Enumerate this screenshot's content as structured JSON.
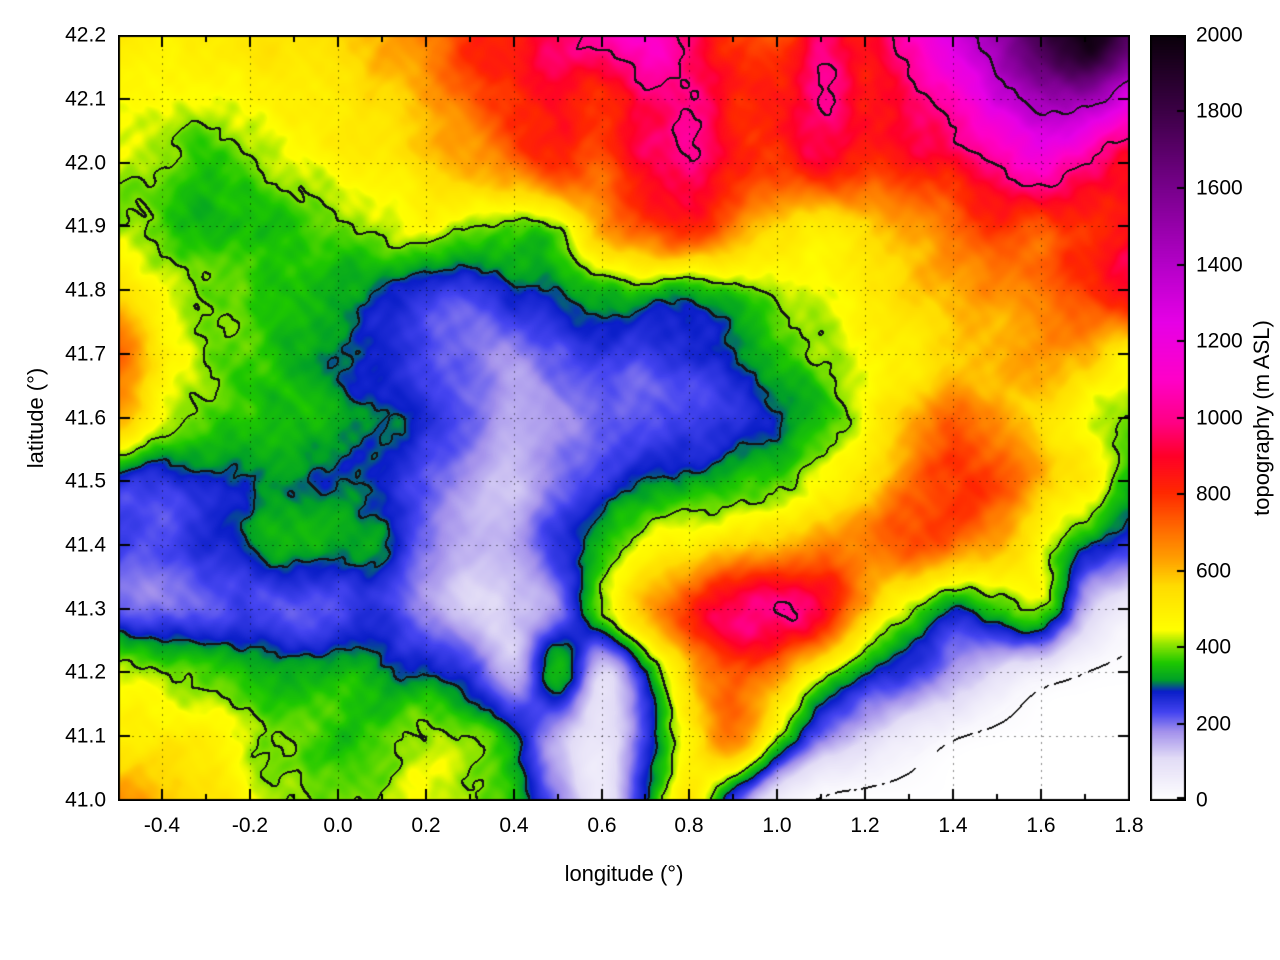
{
  "figure": {
    "background": "#ffffff",
    "text_color": "#000000"
  },
  "axes": {
    "xlabel": "longitude (°)",
    "ylabel": "latitude (°)",
    "x_range": [
      -0.5,
      1.8
    ],
    "y_range": [
      41.0,
      42.2
    ],
    "x_tick_values": [
      -0.4,
      -0.2,
      0.0,
      0.2,
      0.4,
      0.6,
      0.8,
      1.0,
      1.2,
      1.4,
      1.6,
      1.8
    ],
    "x_tick_labels": [
      "-0.4",
      "-0.2",
      "0.0",
      "0.2",
      "0.4",
      "0.6",
      "0.8",
      "1.0",
      "1.2",
      "1.4",
      "1.6",
      "1.8"
    ],
    "x_minor_tick_step": 0.1,
    "y_tick_values": [
      41.0,
      41.1,
      41.2,
      41.3,
      41.4,
      41.5,
      41.6,
      41.7,
      41.8,
      41.9,
      42.0,
      42.1,
      42.2
    ],
    "y_tick_labels": [
      "41.0",
      "41.1",
      "41.2",
      "41.3",
      "41.4",
      "41.5",
      "41.6",
      "41.7",
      "41.8",
      "41.9",
      "42.0",
      "42.1",
      "42.2"
    ],
    "grid_dotted": true,
    "border_color": "#000000"
  },
  "colorbar": {
    "label": "topography (m ASL)",
    "range": [
      0,
      2000
    ],
    "tick_values": [
      0,
      200,
      400,
      600,
      800,
      1000,
      1200,
      1400,
      1600,
      1800,
      2000
    ],
    "tick_labels": [
      "0",
      "200",
      "400",
      "600",
      "800",
      "1000",
      "1200",
      "1400",
      "1600",
      "1800",
      "2000"
    ]
  },
  "chart_data": {
    "type": "heatmap",
    "title": "",
    "xlabel": "longitude (°)",
    "ylabel": "latitude (°)",
    "zlabel": "topography (m ASL)",
    "x_range": [
      -0.5,
      1.8
    ],
    "y_range": [
      41.0,
      42.2
    ],
    "z_range": [
      0,
      2000
    ],
    "grid_step_deg": 0.1,
    "rows_order": "north_to_south (lat 42.2 -> 41.0), cols west_to_east (lon -0.5 -> 1.8)",
    "elevation_grid_m": [
      [
        500,
        480,
        500,
        520,
        520,
        560,
        620,
        680,
        800,
        850,
        950,
        1050,
        1150,
        950,
        800,
        750,
        950,
        850,
        1100,
        1300,
        1500,
        1800,
        2000,
        1750
      ],
      [
        470,
        450,
        440,
        480,
        500,
        520,
        560,
        620,
        720,
        820,
        880,
        820,
        950,
        1020,
        820,
        850,
        1000,
        880,
        950,
        1100,
        1300,
        1450,
        1500,
        1250
      ],
      [
        430,
        390,
        360,
        400,
        450,
        480,
        500,
        560,
        620,
        720,
        820,
        760,
        900,
        980,
        820,
        800,
        900,
        820,
        850,
        900,
        1000,
        1150,
        1000,
        900
      ],
      [
        420,
        380,
        350,
        350,
        360,
        380,
        420,
        450,
        420,
        380,
        420,
        620,
        760,
        820,
        700,
        560,
        520,
        560,
        620,
        700,
        800,
        760,
        820,
        860
      ],
      [
        550,
        450,
        400,
        380,
        350,
        330,
        300,
        260,
        250,
        290,
        320,
        340,
        360,
        330,
        380,
        420,
        450,
        500,
        560,
        620,
        660,
        700,
        800,
        900
      ],
      [
        700,
        500,
        400,
        360,
        330,
        300,
        270,
        230,
        200,
        180,
        220,
        250,
        240,
        260,
        300,
        350,
        400,
        450,
        500,
        560,
        600,
        650,
        600,
        480
      ],
      [
        600,
        450,
        380,
        350,
        340,
        320,
        300,
        260,
        220,
        150,
        180,
        200,
        220,
        230,
        260,
        300,
        350,
        450,
        600,
        700,
        650,
        550,
        450,
        400
      ],
      [
        260,
        240,
        280,
        300,
        320,
        300,
        280,
        220,
        160,
        140,
        200,
        260,
        300,
        320,
        340,
        380,
        450,
        550,
        700,
        800,
        750,
        600,
        500,
        350
      ],
      [
        240,
        220,
        260,
        300,
        340,
        330,
        300,
        200,
        140,
        160,
        250,
        350,
        450,
        500,
        550,
        600,
        650,
        700,
        750,
        700,
        600,
        450,
        300,
        250
      ],
      [
        220,
        200,
        220,
        240,
        220,
        230,
        250,
        180,
        120,
        130,
        200,
        400,
        600,
        800,
        950,
        1000,
        900,
        600,
        400,
        300,
        350,
        400,
        150,
        60
      ],
      [
        450,
        400,
        380,
        350,
        330,
        350,
        320,
        300,
        250,
        150,
        350,
        120,
        300,
        600,
        750,
        650,
        450,
        300,
        250,
        180,
        100,
        50,
        15,
        5
      ],
      [
        500,
        520,
        480,
        420,
        380,
        360,
        380,
        420,
        400,
        300,
        150,
        80,
        250,
        500,
        700,
        400,
        200,
        120,
        60,
        20,
        5,
        0,
        0,
        0
      ],
      [
        650,
        600,
        550,
        450,
        400,
        380,
        420,
        450,
        420,
        350,
        200,
        60,
        300,
        500,
        250,
        60,
        10,
        0,
        0,
        0,
        0,
        0,
        0,
        0
      ]
    ],
    "contour_levels_m": [
      300,
      400,
      1000,
      1400
    ],
    "coastline_level_m": 15,
    "contour_color": "#141414",
    "palette_stops": [
      [
        0,
        "#ffffff"
      ],
      [
        110,
        "#e2dcf6"
      ],
      [
        180,
        "#a391ec"
      ],
      [
        230,
        "#4444f0"
      ],
      [
        285,
        "#0a1ec8"
      ],
      [
        315,
        "#00a028"
      ],
      [
        360,
        "#1ec800"
      ],
      [
        410,
        "#96e600"
      ],
      [
        445,
        "#ffff00"
      ],
      [
        560,
        "#ffdc00"
      ],
      [
        630,
        "#ffa000"
      ],
      [
        720,
        "#ff6400"
      ],
      [
        805,
        "#ff2800"
      ],
      [
        900,
        "#ff0028"
      ],
      [
        985,
        "#ff0082"
      ],
      [
        1100,
        "#ff00c8"
      ],
      [
        1250,
        "#e600e6"
      ],
      [
        1400,
        "#b400c8"
      ],
      [
        1600,
        "#78008c"
      ],
      [
        1800,
        "#3c0046"
      ],
      [
        2000,
        "#0a000a"
      ]
    ]
  }
}
